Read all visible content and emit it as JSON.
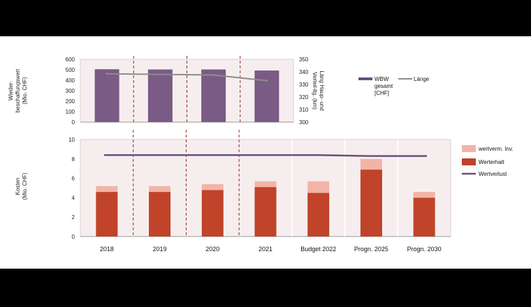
{
  "colors": {
    "purple_bar": "#7a5b85",
    "purple_line": "#6a4f7e",
    "red_bar": "#c0432a",
    "pink_bar": "#f2b4a6",
    "grey_line": "#8d8d8d",
    "panel_bg": "#f6eeee",
    "divider": "#8a2a2a"
  },
  "chart_data": [
    {
      "type": "bar",
      "name": "top",
      "categories": [
        "2018",
        "2019",
        "2020",
        "2021"
      ],
      "ylabel": "Wieder-beschaffungswert (Mio. CHF)",
      "ylabel_lines": [
        "Wieder-",
        "beschaffungswert",
        "(Mio. CHF)"
      ],
      "ylim": [
        0,
        600
      ],
      "yticks": [
        "0",
        "100",
        "200",
        "300",
        "400",
        "500",
        "600"
      ],
      "y2label": "Läng Haup- und Verteil-ltg. (km)",
      "y2label_lines": [
        "Läng Haup- und",
        "Verteil-ltg. (km)"
      ],
      "y2lim": [
        300,
        350
      ],
      "y2ticks": [
        "300",
        "310",
        "320",
        "330",
        "340",
        "350"
      ],
      "series": [
        {
          "name": "WBW gesamt [CHF]",
          "legend_lines": [
            "WBW",
            "gesamt",
            "[CHF]"
          ],
          "kind": "bar",
          "values": [
            505,
            503,
            503,
            493
          ]
        },
        {
          "name": "Länge",
          "kind": "line",
          "axis": "secondary",
          "values": [
            338.5,
            338,
            337.5,
            333
          ]
        }
      ]
    },
    {
      "type": "bar",
      "name": "bottom",
      "stacked": true,
      "categories": [
        "2018",
        "2019",
        "2020",
        "2021",
        "Budget 2022",
        "Progn. 2025",
        "Progn. 2030"
      ],
      "ylabel": "Kosten (Mio. CHF)",
      "ylabel_lines": [
        "Kosten",
        "(Mio. CHF)"
      ],
      "ylim": [
        0,
        10
      ],
      "yticks": [
        "0",
        "2",
        "4",
        "6",
        "8",
        "10"
      ],
      "series": [
        {
          "name": "Werterhalt",
          "kind": "bar",
          "values": [
            4.6,
            4.6,
            4.8,
            5.1,
            4.5,
            6.9,
            4.0
          ]
        },
        {
          "name": "wertverm. Inv.",
          "kind": "bar",
          "values": [
            0.6,
            0.6,
            0.6,
            0.6,
            1.2,
            1.1,
            0.6
          ]
        },
        {
          "name": "Wertverlust",
          "kind": "line",
          "values": [
            8.4,
            8.4,
            8.4,
            8.4,
            8.4,
            8.3,
            8.3
          ]
        }
      ]
    }
  ]
}
